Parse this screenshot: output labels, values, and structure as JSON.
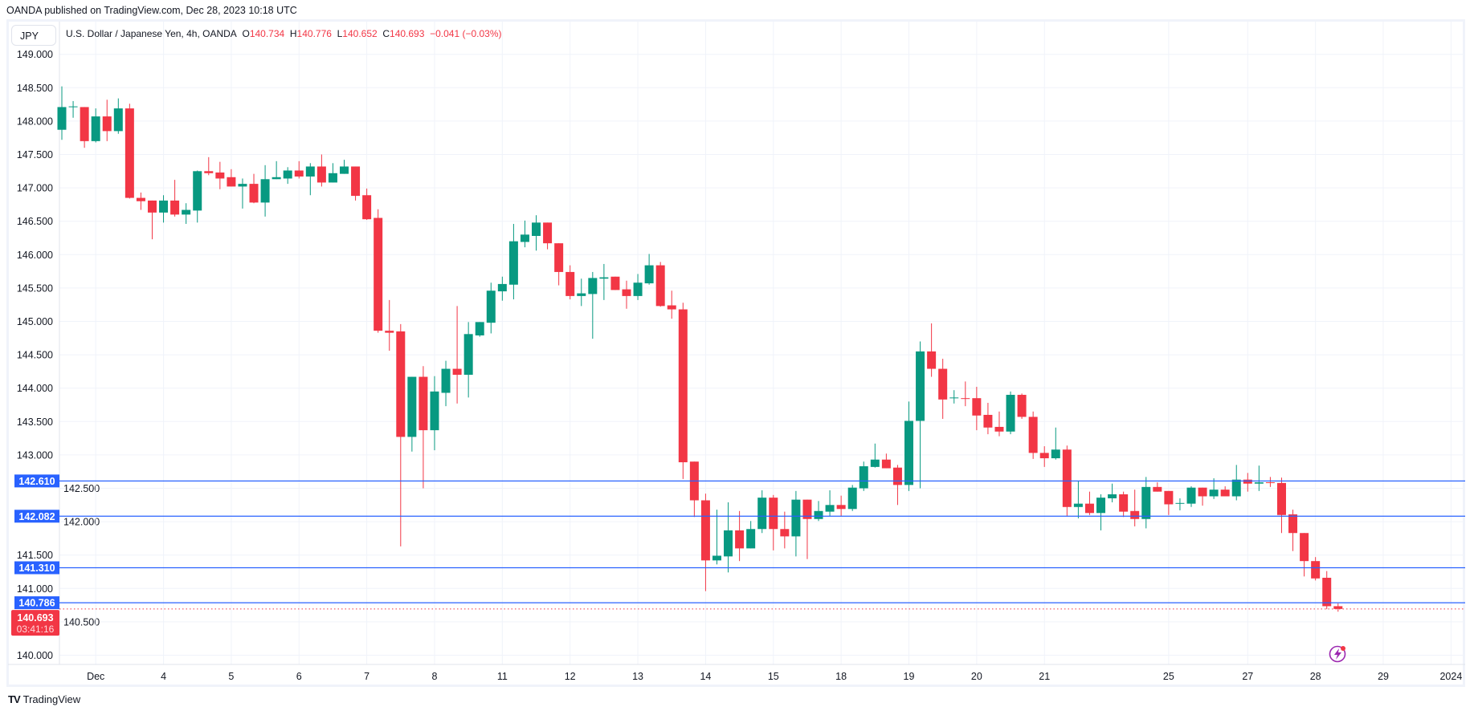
{
  "source": "OANDA published on TradingView.com, Dec 28, 2023 10:18 UTC",
  "symbol_box": "JPY",
  "legend": {
    "title": "U.S. Dollar / Japanese Yen, 4h, OANDA",
    "o_label": "O",
    "o": "140.734",
    "h_label": "H",
    "h": "140.776",
    "l_label": "L",
    "l": "140.652",
    "c_label": "C",
    "c": "140.693",
    "change": "−0.041 (−0.03%)"
  },
  "footer": {
    "logo_text": "TradingView"
  },
  "colors": {
    "up": "#089981",
    "down": "#f23645",
    "level_line": "#2962ff",
    "grid": "#f0f3fa",
    "icon": "#9c27b0"
  },
  "chart_data": {
    "type": "candlestick",
    "timeframe": "4h",
    "ylim": [
      139.8,
      149.2
    ],
    "grid": true,
    "price_ticks": [
      "149.000",
      "148.500",
      "148.000",
      "147.500",
      "147.000",
      "146.500",
      "146.000",
      "145.500",
      "145.000",
      "144.500",
      "144.000",
      "143.500",
      "143.000",
      "142.500",
      "142.000",
      "141.500",
      "141.000",
      "140.500",
      "140.000"
    ],
    "time_labels": [
      {
        "label": "Dec",
        "bar": 3
      },
      {
        "label": "4",
        "bar": 9
      },
      {
        "label": "5",
        "bar": 15
      },
      {
        "label": "6",
        "bar": 21
      },
      {
        "label": "7",
        "bar": 27
      },
      {
        "label": "8",
        "bar": 33
      },
      {
        "label": "11",
        "bar": 39
      },
      {
        "label": "12",
        "bar": 45
      },
      {
        "label": "13",
        "bar": 51
      },
      {
        "label": "14",
        "bar": 57
      },
      {
        "label": "15",
        "bar": 63
      },
      {
        "label": "18",
        "bar": 69
      },
      {
        "label": "19",
        "bar": 75
      },
      {
        "label": "20",
        "bar": 81
      },
      {
        "label": "21",
        "bar": 87
      },
      {
        "label": "25",
        "bar": 98
      },
      {
        "label": "27",
        "bar": 105
      },
      {
        "label": "28",
        "bar": 111
      },
      {
        "label": "29",
        "bar": 117
      },
      {
        "label": "2024",
        "bar": 123
      }
    ],
    "levels": [
      "142.610",
      "142.082",
      "141.310",
      "140.786"
    ],
    "last_price": "140.693",
    "countdown": "03:41:16",
    "ohlc": [
      [
        147.87,
        148.52,
        147.72,
        148.21
      ],
      [
        148.21,
        148.3,
        148.05,
        148.22
      ],
      [
        148.21,
        148.21,
        147.6,
        147.7
      ],
      [
        147.7,
        148.19,
        147.68,
        148.07
      ],
      [
        148.07,
        148.32,
        147.7,
        147.85
      ],
      [
        147.85,
        148.34,
        147.81,
        148.19
      ],
      [
        148.19,
        148.26,
        146.84,
        146.85
      ],
      [
        146.85,
        146.93,
        146.67,
        146.8
      ],
      [
        146.81,
        146.81,
        146.23,
        146.63
      ],
      [
        146.63,
        146.89,
        146.48,
        146.81
      ],
      [
        146.81,
        147.12,
        146.57,
        146.6
      ],
      [
        146.6,
        146.77,
        146.46,
        146.67
      ],
      [
        146.66,
        147.26,
        146.48,
        147.25
      ],
      [
        147.25,
        147.46,
        147.19,
        147.22
      ],
      [
        147.23,
        147.39,
        146.98,
        147.14
      ],
      [
        147.16,
        147.28,
        147.02,
        147.02
      ],
      [
        147.02,
        147.14,
        146.69,
        147.06
      ],
      [
        147.06,
        147.21,
        146.77,
        146.78
      ],
      [
        146.78,
        147.34,
        146.57,
        147.13
      ],
      [
        147.13,
        147.4,
        147.13,
        147.16
      ],
      [
        147.14,
        147.31,
        147.06,
        147.26
      ],
      [
        147.26,
        147.4,
        147.14,
        147.17
      ],
      [
        147.17,
        147.37,
        146.89,
        147.32
      ],
      [
        147.32,
        147.5,
        147.02,
        147.08
      ],
      [
        147.08,
        147.37,
        147.08,
        147.22
      ],
      [
        147.21,
        147.42,
        147.21,
        147.32
      ],
      [
        147.32,
        147.32,
        146.81,
        146.88
      ],
      [
        146.89,
        146.99,
        146.52,
        146.53
      ],
      [
        146.55,
        146.68,
        144.83,
        144.86
      ],
      [
        144.86,
        145.32,
        144.56,
        144.83
      ],
      [
        144.85,
        144.96,
        141.63,
        143.27
      ],
      [
        143.27,
        144.17,
        143.05,
        144.17
      ],
      [
        144.17,
        144.33,
        142.5,
        143.37
      ],
      [
        143.37,
        144.18,
        143.07,
        143.95
      ],
      [
        143.93,
        144.41,
        143.73,
        144.29
      ],
      [
        144.29,
        145.23,
        143.77,
        144.2
      ],
      [
        144.2,
        144.99,
        143.86,
        144.81
      ],
      [
        144.79,
        144.99,
        144.77,
        144.99
      ],
      [
        144.98,
        145.58,
        144.82,
        145.46
      ],
      [
        145.45,
        145.67,
        145.31,
        145.56
      ],
      [
        145.55,
        146.46,
        145.33,
        146.2
      ],
      [
        146.19,
        146.51,
        146.11,
        146.3
      ],
      [
        146.28,
        146.59,
        146.06,
        146.48
      ],
      [
        146.48,
        146.48,
        146.08,
        146.17
      ],
      [
        146.17,
        146.17,
        145.54,
        145.74
      ],
      [
        145.74,
        145.84,
        145.33,
        145.38
      ],
      [
        145.38,
        145.64,
        145.23,
        145.42
      ],
      [
        145.41,
        145.74,
        144.74,
        145.65
      ],
      [
        145.64,
        145.86,
        145.32,
        145.66
      ],
      [
        145.67,
        145.67,
        145.47,
        145.47
      ],
      [
        145.48,
        145.61,
        145.19,
        145.38
      ],
      [
        145.38,
        145.71,
        145.32,
        145.58
      ],
      [
        145.57,
        146.01,
        145.55,
        145.84
      ],
      [
        145.84,
        145.89,
        145.22,
        145.23
      ],
      [
        145.24,
        145.46,
        145.04,
        145.18
      ],
      [
        145.18,
        145.28,
        142.64,
        142.89
      ],
      [
        142.9,
        142.9,
        142.07,
        142.32
      ],
      [
        142.32,
        142.42,
        140.96,
        141.42
      ],
      [
        141.42,
        142.18,
        141.36,
        141.49
      ],
      [
        141.48,
        142.29,
        141.24,
        141.87
      ],
      [
        141.87,
        142.16,
        141.41,
        141.6
      ],
      [
        141.6,
        142.01,
        141.6,
        141.89
      ],
      [
        141.89,
        142.47,
        141.83,
        142.36
      ],
      [
        142.36,
        142.4,
        141.57,
        141.89
      ],
      [
        141.89,
        142.15,
        141.6,
        141.78
      ],
      [
        141.78,
        142.46,
        141.48,
        142.33
      ],
      [
        142.33,
        142.33,
        141.44,
        142.04
      ],
      [
        142.04,
        142.31,
        142.01,
        142.16
      ],
      [
        142.15,
        142.47,
        142.08,
        142.25
      ],
      [
        142.25,
        142.39,
        142.08,
        142.19
      ],
      [
        142.19,
        142.55,
        142.16,
        142.51
      ],
      [
        142.5,
        142.9,
        142.46,
        142.83
      ],
      [
        142.82,
        143.17,
        142.81,
        142.93
      ],
      [
        142.93,
        143.02,
        142.8,
        142.8
      ],
      [
        142.81,
        142.85,
        142.25,
        142.55
      ],
      [
        142.55,
        143.8,
        142.46,
        143.51
      ],
      [
        143.51,
        144.7,
        142.5,
        144.55
      ],
      [
        144.55,
        144.97,
        144.17,
        144.29
      ],
      [
        144.29,
        144.44,
        143.54,
        143.83
      ],
      [
        143.85,
        143.97,
        143.77,
        143.86
      ],
      [
        143.85,
        144.1,
        143.73,
        143.84
      ],
      [
        143.85,
        144.02,
        143.37,
        143.59
      ],
      [
        143.6,
        143.78,
        143.31,
        143.41
      ],
      [
        143.42,
        143.65,
        143.28,
        143.35
      ],
      [
        143.35,
        143.95,
        143.31,
        143.9
      ],
      [
        143.9,
        143.92,
        143.54,
        143.57
      ],
      [
        143.57,
        143.65,
        142.94,
        143.03
      ],
      [
        143.03,
        143.13,
        142.82,
        142.95
      ],
      [
        142.95,
        143.41,
        142.93,
        143.08
      ],
      [
        143.08,
        143.14,
        142.08,
        142.22
      ],
      [
        142.22,
        142.61,
        142.05,
        142.27
      ],
      [
        142.27,
        142.45,
        142.1,
        142.13
      ],
      [
        142.13,
        142.41,
        141.87,
        142.36
      ],
      [
        142.35,
        142.57,
        142.29,
        142.41
      ],
      [
        142.41,
        142.45,
        142.07,
        142.15
      ],
      [
        142.16,
        142.48,
        141.93,
        142.04
      ],
      [
        142.04,
        142.67,
        141.9,
        142.52
      ],
      [
        142.52,
        142.59,
        142.45,
        142.45
      ],
      [
        142.46,
        142.46,
        142.1,
        142.26
      ],
      [
        142.27,
        142.35,
        142.17,
        142.28
      ],
      [
        142.27,
        142.53,
        142.22,
        142.51
      ],
      [
        142.51,
        142.51,
        142.24,
        142.38
      ],
      [
        142.38,
        142.65,
        142.34,
        142.48
      ],
      [
        142.48,
        142.53,
        142.38,
        142.38
      ],
      [
        142.38,
        142.85,
        142.32,
        142.63
      ],
      [
        142.63,
        142.73,
        142.45,
        142.57
      ],
      [
        142.57,
        142.84,
        142.46,
        142.59
      ],
      [
        142.59,
        142.67,
        142.52,
        142.58
      ],
      [
        142.58,
        142.66,
        141.83,
        142.1
      ],
      [
        142.11,
        142.18,
        141.56,
        141.83
      ],
      [
        141.83,
        141.83,
        141.18,
        141.41
      ],
      [
        141.41,
        141.47,
        141.12,
        141.15
      ],
      [
        141.16,
        141.26,
        140.69,
        140.734
      ],
      [
        140.734,
        140.776,
        140.652,
        140.693
      ]
    ]
  }
}
